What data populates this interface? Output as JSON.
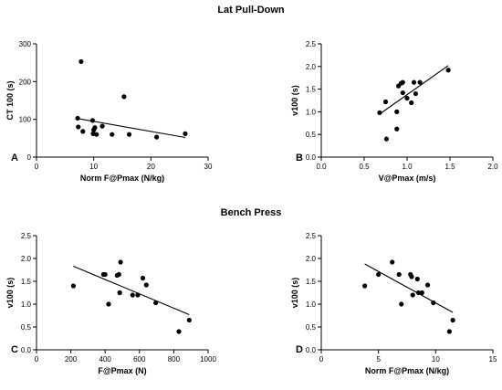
{
  "section_titles": [
    "Lat Pull-Down",
    "Bench Press"
  ],
  "chart_data": [
    {
      "type": "scatter",
      "panel": "A",
      "xlabel": "Norm F@Pmax (N/kg)",
      "ylabel": "CT 100 (s)",
      "xlim": [
        0,
        30
      ],
      "ylim": [
        0,
        300
      ],
      "xticks": [
        0,
        10,
        20,
        30
      ],
      "yticks": [
        0,
        100,
        200,
        300
      ],
      "x_tick_labels": [
        "0",
        "10",
        "20",
        "30"
      ],
      "y_tick_labels": [
        "0",
        "100",
        "200",
        "300"
      ],
      "points": [
        [
          7.2,
          103
        ],
        [
          7.3,
          80
        ],
        [
          7.8,
          253
        ],
        [
          8.1,
          68
        ],
        [
          9.8,
          97
        ],
        [
          9.9,
          62
        ],
        [
          10.0,
          72
        ],
        [
          10.2,
          78
        ],
        [
          10.5,
          60
        ],
        [
          11.5,
          82
        ],
        [
          13.2,
          60
        ],
        [
          15.3,
          160
        ],
        [
          16.2,
          60
        ],
        [
          21.0,
          53
        ],
        [
          26.0,
          62
        ]
      ],
      "fit": [
        [
          7.2,
          102
        ],
        [
          26.0,
          52
        ]
      ]
    },
    {
      "type": "scatter",
      "panel": "B",
      "xlabel": "V@Pmax (m/s)",
      "ylabel": "v100 (s)",
      "xlim": [
        0,
        2.0
      ],
      "ylim": [
        0,
        2.5
      ],
      "xticks": [
        0,
        0.5,
        1.0,
        1.5,
        2.0
      ],
      "yticks": [
        0,
        0.5,
        1.0,
        1.5,
        2.0,
        2.5
      ],
      "x_tick_labels": [
        "0.0",
        "0.5",
        "1.0",
        "1.5",
        "2.0"
      ],
      "y_tick_labels": [
        "0.0",
        "0.5",
        "1.0",
        "1.5",
        "2.0",
        "2.5"
      ],
      "points": [
        [
          0.68,
          0.98
        ],
        [
          0.75,
          1.22
        ],
        [
          0.76,
          0.4
        ],
        [
          0.88,
          1.0
        ],
        [
          0.88,
          0.62
        ],
        [
          0.9,
          1.57
        ],
        [
          0.93,
          1.63
        ],
        [
          0.95,
          1.65
        ],
        [
          0.95,
          1.42
        ],
        [
          1.0,
          1.3
        ],
        [
          1.05,
          1.2
        ],
        [
          1.08,
          1.65
        ],
        [
          1.1,
          1.4
        ],
        [
          1.15,
          1.65
        ],
        [
          1.48,
          1.92
        ]
      ],
      "fit": [
        [
          0.68,
          0.95
        ],
        [
          1.48,
          2.02
        ]
      ]
    },
    {
      "type": "scatter",
      "panel": "C",
      "xlabel": "F@Pmax (N)",
      "ylabel": "v100 (s)",
      "xlim": [
        0,
        1000
      ],
      "ylim": [
        0,
        2.5
      ],
      "xticks": [
        0,
        200,
        400,
        600,
        800,
        1000
      ],
      "yticks": [
        0,
        0.5,
        1.0,
        1.5,
        2.0,
        2.5
      ],
      "x_tick_labels": [
        "0",
        "200",
        "400",
        "600",
        "800",
        "1000"
      ],
      "y_tick_labels": [
        "0.0",
        "0.5",
        "1.0",
        "1.5",
        "2.0",
        "2.5"
      ],
      "points": [
        [
          215,
          1.4
        ],
        [
          390,
          1.65
        ],
        [
          400,
          1.65
        ],
        [
          420,
          1.0
        ],
        [
          470,
          1.63
        ],
        [
          480,
          1.65
        ],
        [
          485,
          1.25
        ],
        [
          490,
          1.92
        ],
        [
          560,
          1.2
        ],
        [
          590,
          1.2
        ],
        [
          620,
          1.57
        ],
        [
          640,
          1.42
        ],
        [
          695,
          1.03
        ],
        [
          830,
          0.4
        ],
        [
          890,
          0.65
        ]
      ],
      "fit": [
        [
          215,
          1.83
        ],
        [
          890,
          0.77
        ]
      ]
    },
    {
      "type": "scatter",
      "panel": "D",
      "xlabel": "Norm F@Pmax (N/kg)",
      "ylabel": "v100 (s)",
      "xlim": [
        0,
        15
      ],
      "ylim": [
        0,
        2.5
      ],
      "xticks": [
        0,
        5,
        10,
        15
      ],
      "yticks": [
        0,
        0.5,
        1.0,
        1.5,
        2.0,
        2.5
      ],
      "x_tick_labels": [
        "0",
        "5",
        "10",
        "15"
      ],
      "y_tick_labels": [
        "0.0",
        "0.5",
        "1.0",
        "1.5",
        "2.0",
        "2.5"
      ],
      "points": [
        [
          3.8,
          1.4
        ],
        [
          5.0,
          1.65
        ],
        [
          6.2,
          1.92
        ],
        [
          6.8,
          1.65
        ],
        [
          7.0,
          1.0
        ],
        [
          7.8,
          1.65
        ],
        [
          7.9,
          1.6
        ],
        [
          8.0,
          1.2
        ],
        [
          8.4,
          1.55
        ],
        [
          8.5,
          1.25
        ],
        [
          8.8,
          1.25
        ],
        [
          9.3,
          1.42
        ],
        [
          9.8,
          1.03
        ],
        [
          11.2,
          0.4
        ],
        [
          11.5,
          0.65
        ]
      ],
      "fit": [
        [
          3.8,
          1.88
        ],
        [
          11.5,
          0.82
        ]
      ]
    }
  ]
}
